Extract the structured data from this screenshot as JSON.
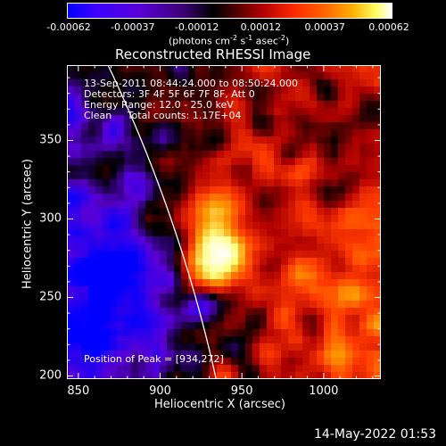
{
  "colorbar": {
    "tick_labels": [
      "-0.00062",
      "-0.00037",
      "-0.00012",
      "0.00012",
      "0.00037",
      "0.00062"
    ],
    "units_label": "(photons cm",
    "units_sup1": "-2",
    "units_mid": " s",
    "units_sup2": "-1",
    "units_end": " asec",
    "units_sup3": "-2",
    "units_close": ")"
  },
  "chart_data": {
    "type": "heatmap",
    "title": "Reconstructed RHESSI Image",
    "xlabel": "Heliocentric X (arcsec)",
    "ylabel": "Heliocentric Y (arcsec)",
    "xlim": [
      843,
      1035
    ],
    "ylim": [
      198,
      398
    ],
    "x_ticks": [
      850,
      900,
      950,
      1000
    ],
    "y_ticks": [
      200,
      250,
      300,
      350
    ],
    "value_range": [
      -0.00062,
      0.00062
    ],
    "peak": {
      "x": 934,
      "y": 272,
      "value": 0.00062
    },
    "colormap": [
      "#0000ff",
      "#5a00d8",
      "#000000",
      "#b00000",
      "#ff3a00",
      "#ff9a00",
      "#ffff80",
      "#ffffff"
    ],
    "limb_color": "#ffffff"
  },
  "info": {
    "line1": "13-Sep-2011 08:44:24.000 to 08:50:24.000",
    "line2": "Detectors: 3F 4F 5F 6F 7F 8F, Att 0",
    "line3": "Energy Range: 12.0 - 25.0 keV",
    "line4": "Clean     Total counts: 1.17E+04",
    "peak_text": "Position of Peak = [934,272]"
  },
  "footer": {
    "date": "14-May-2022 01:53"
  }
}
